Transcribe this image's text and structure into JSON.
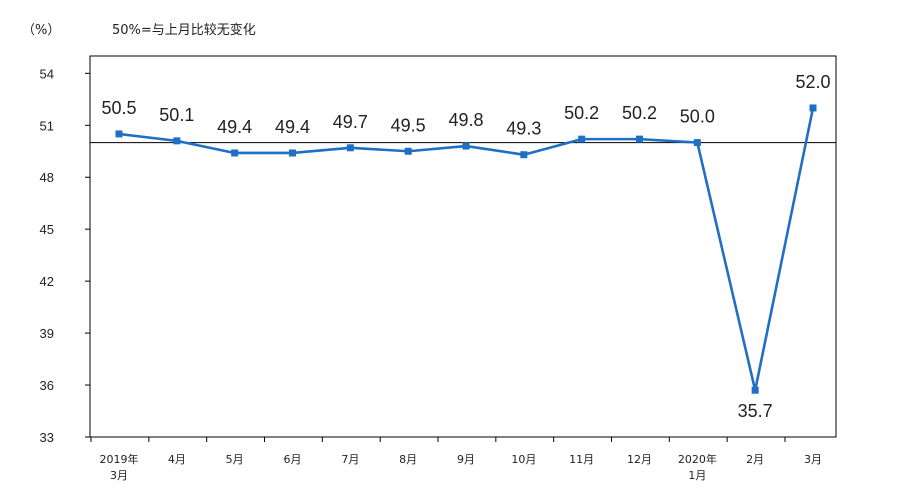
{
  "chart_data": {
    "type": "line",
    "unit_label": "（%）",
    "reference_note": "50%=与上月比较无变化",
    "reference_value": 50,
    "ylim": [
      33,
      55
    ],
    "yticks": [
      "54",
      "51",
      "48",
      "45",
      "42",
      "39",
      "36",
      "33"
    ],
    "ytick_values": [
      54,
      51,
      48,
      45,
      42,
      39,
      36,
      33
    ],
    "categories": [
      [
        "2019年",
        "3月"
      ],
      [
        "4月"
      ],
      [
        "5月"
      ],
      [
        "6月"
      ],
      [
        "7月"
      ],
      [
        "8月"
      ],
      [
        "9月"
      ],
      [
        "10月"
      ],
      [
        "11月"
      ],
      [
        "12月"
      ],
      [
        "2020年",
        "1月"
      ],
      [
        "2月"
      ],
      [
        "3月"
      ]
    ],
    "series": [
      {
        "values": [
          50.5,
          50.1,
          49.4,
          49.4,
          49.7,
          49.5,
          49.8,
          49.3,
          50.2,
          50.2,
          50.0,
          35.7,
          52.0
        ],
        "labels": [
          "50.5",
          "50.1",
          "49.4",
          "49.4",
          "49.7",
          "49.5",
          "49.8",
          "49.3",
          "50.2",
          "50.2",
          "50.0",
          "35.7",
          "52.0"
        ],
        "color": "#1f6fc5"
      }
    ],
    "label_below": [
      false,
      false,
      false,
      false,
      false,
      false,
      false,
      false,
      false,
      false,
      false,
      true,
      false
    ],
    "grid": false,
    "legend": "none"
  }
}
